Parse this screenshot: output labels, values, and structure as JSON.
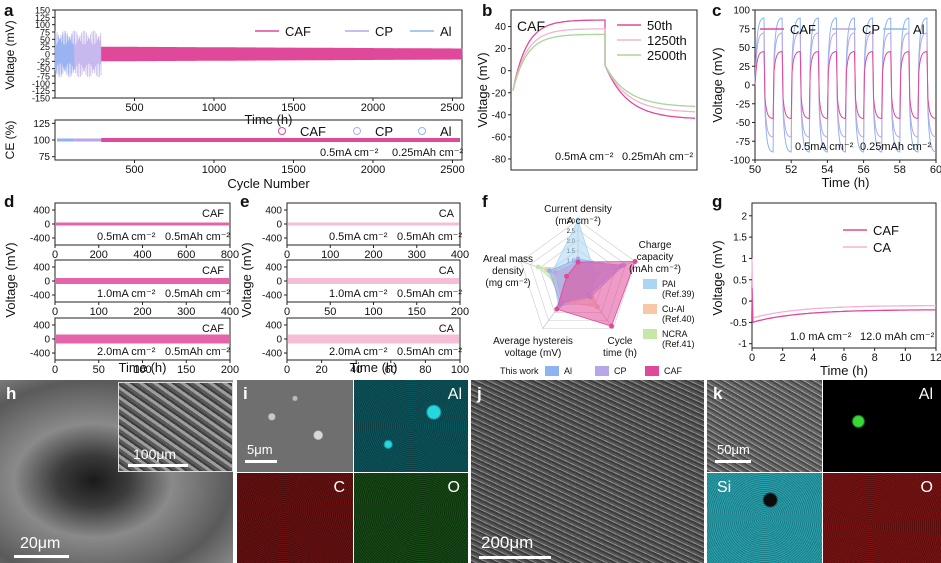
{
  "panel_letters": {
    "a": "a",
    "b": "b",
    "c": "c",
    "d": "d",
    "e": "e",
    "f": "f",
    "g": "g",
    "h": "h",
    "i": "i",
    "j": "j",
    "k": "k"
  },
  "colors": {
    "CAF": "#e0489a",
    "CP": "#b9a6ea",
    "Al": "#8fb3f2",
    "CA": "#f3b3cf",
    "PAI": "#a9d6f2",
    "CuAl": "#f7c8a7",
    "NCRA": "#c8e6a8"
  },
  "chart_data": [
    {
      "id": "a_top",
      "type": "line",
      "xlabel": "Time (h)",
      "ylabel": "Voltage (mV)",
      "xticks": [
        500,
        1000,
        1500,
        2000,
        2500
      ],
      "yticks": [
        150,
        125,
        100,
        75,
        50,
        25,
        0,
        -25,
        -50,
        -75,
        -100,
        -125,
        -150
      ],
      "xlim": [
        0,
        2560
      ],
      "ylim": [
        -150,
        150
      ],
      "series": [
        {
          "name": "CAF",
          "x_range": [
            290,
            2560
          ],
          "amplitude": 25
        },
        {
          "name": "CP",
          "x_range": [
            0,
            290
          ],
          "amplitude": 80
        },
        {
          "name": "Al",
          "x_range": [
            0,
            120
          ],
          "amplitude": 70
        }
      ]
    },
    {
      "id": "a_bottom",
      "type": "scatter",
      "xlabel": "Cycle Number",
      "ylabel": "CE (%)",
      "xticks": [
        500,
        1000,
        1500,
        2000,
        2500
      ],
      "yticks": [
        125,
        100,
        75
      ],
      "xlim": [
        0,
        2560
      ],
      "ylim": [
        70,
        130
      ],
      "series": [
        {
          "name": "CAF",
          "y": 100
        },
        {
          "name": "CP",
          "y": 100
        },
        {
          "name": "Al",
          "y": 100
        }
      ],
      "annotation": [
        "0.5mA cm⁻²",
        "0.25mAh cm⁻²"
      ]
    },
    {
      "id": "b",
      "type": "line",
      "title": "CAF",
      "xlabel": "",
      "ylabel": "Voltage (mV)",
      "yticks": [
        40,
        20,
        0,
        -20,
        -40,
        -60,
        -80
      ],
      "ylim": [
        -90,
        55
      ],
      "series": [
        {
          "name": "50th"
        },
        {
          "name": "1250th"
        },
        {
          "name": "2500th"
        }
      ],
      "annotation": [
        "0.5mA cm⁻²",
        "0.25mAh cm⁻²"
      ]
    },
    {
      "id": "c",
      "type": "line",
      "xlabel": "Time (h)",
      "ylabel": "Voltage (mV)",
      "xticks": [
        50,
        52,
        54,
        56,
        58,
        60
      ],
      "yticks": [
        100,
        75,
        50,
        25,
        0,
        -25,
        -50,
        -75,
        -100
      ],
      "xlim": [
        50,
        60
      ],
      "ylim": [
        -100,
        100
      ],
      "series": [
        {
          "name": "CAF"
        },
        {
          "name": "CP"
        },
        {
          "name": "Al"
        }
      ],
      "annotation": [
        "0.5mA cm⁻²",
        "0.25mAh cm⁻²"
      ]
    },
    {
      "id": "d",
      "type": "line",
      "xlabel": "Time (h)",
      "ylabel": "Voltage (mV)",
      "subplots": [
        {
          "label": "CAF",
          "xticks": [
            0,
            200,
            400,
            600,
            800
          ],
          "yticks": [
            400,
            0,
            -400
          ],
          "ann": [
            "0.5mA cm⁻²",
            "0.5mAh cm⁻²"
          ]
        },
        {
          "label": "CAF",
          "xticks": [
            0,
            100,
            200,
            300,
            400
          ],
          "yticks": [
            400,
            0,
            -400
          ],
          "ann": [
            "1.0mA cm⁻²",
            "0.5mAh cm⁻²"
          ]
        },
        {
          "label": "CAF",
          "xticks": [
            0,
            50,
            100,
            150,
            200
          ],
          "yticks": [
            400,
            0,
            -400
          ],
          "ann": [
            "2.0mA cm⁻²",
            "0.5mAh cm⁻²"
          ]
        }
      ]
    },
    {
      "id": "e",
      "type": "line",
      "xlabel": "Time (h)",
      "ylabel": "Voltage (mV)",
      "subplots": [
        {
          "label": "CA",
          "xticks": [
            0,
            100,
            200,
            300,
            400
          ],
          "yticks": [
            400,
            0,
            -400
          ],
          "ann": [
            "0.5mA cm⁻²",
            "0.5mAh cm⁻²"
          ]
        },
        {
          "label": "CA",
          "xticks": [
            0,
            50,
            100,
            150,
            200
          ],
          "yticks": [
            400,
            0,
            -400
          ],
          "ann": [
            "1.0mA cm⁻²",
            "0.5mAh cm⁻²"
          ]
        },
        {
          "label": "CA",
          "xticks": [
            0,
            20,
            40,
            60,
            80,
            100
          ],
          "yticks": [
            400,
            0,
            -400
          ],
          "ann": [
            "2.0mA cm⁻²",
            "0.5mAh cm⁻²"
          ]
        }
      ]
    },
    {
      "id": "f",
      "type": "radar",
      "axes": [
        [
          "Current density",
          "(mA cm⁻²)"
        ],
        [
          "Charge",
          "capacity",
          "(mAh cm⁻²)"
        ],
        [
          "Cycle",
          "time (h)"
        ],
        [
          "Average hystereis",
          "voltage (mV)"
        ],
        [
          "Areal mass",
          "density",
          "(mg cm⁻²)"
        ]
      ],
      "ticks": [
        "0.5",
        "1.0",
        "1.5",
        "2.0",
        "2.5",
        "3.0"
      ],
      "series": [
        {
          "name": "PAI",
          "ref": "(Ref.39)",
          "values": [
            1.0,
            0.3,
            0.35,
            0.55,
            0.45
          ]
        },
        {
          "name": "Cu-Al",
          "ref": "(Ref.40)",
          "values": [
            0.25,
            0.15,
            0.55,
            0.45,
            0.55
          ]
        },
        {
          "name": "NCRA",
          "ref": "(Ref.41)",
          "values": [
            0.2,
            0.35,
            0.3,
            0.3,
            0.7
          ]
        },
        {
          "name": "Al",
          "values": [
            0.35,
            0.75,
            0.3,
            0.5,
            0.5
          ]
        },
        {
          "name": "CP",
          "values": [
            0.3,
            0.8,
            0.35,
            0.45,
            0.4
          ]
        },
        {
          "name": "CAF",
          "values": [
            0.3,
            1.0,
            0.95,
            0.6,
            0.2
          ]
        }
      ],
      "legend_prefix": "This work"
    },
    {
      "id": "g",
      "type": "line",
      "xlabel": "Time (h)",
      "ylabel": "Voltage (mV)",
      "xticks": [
        0,
        2,
        4,
        6,
        8,
        10,
        12
      ],
      "yticks": [
        2.0,
        1.5,
        1.0,
        0.5,
        0.0,
        -0.5,
        -1.0
      ],
      "xlim": [
        0,
        12
      ],
      "ylim": [
        -1.1,
        2.3
      ],
      "series": [
        {
          "name": "CAF"
        },
        {
          "name": "CA"
        }
      ],
      "annotation": [
        "1.0 mA cm⁻²",
        "12.0 mAh cm⁻²"
      ]
    }
  ],
  "micrographs": {
    "h_scale": "20μm",
    "h_inset_scale": "100μm",
    "i_scale": "5μm",
    "i_labels": [
      "Al",
      "C",
      "O"
    ],
    "j_scale": "200μm",
    "k_scale": "50μm",
    "k_labels": [
      "Al",
      "Si",
      "O"
    ]
  }
}
